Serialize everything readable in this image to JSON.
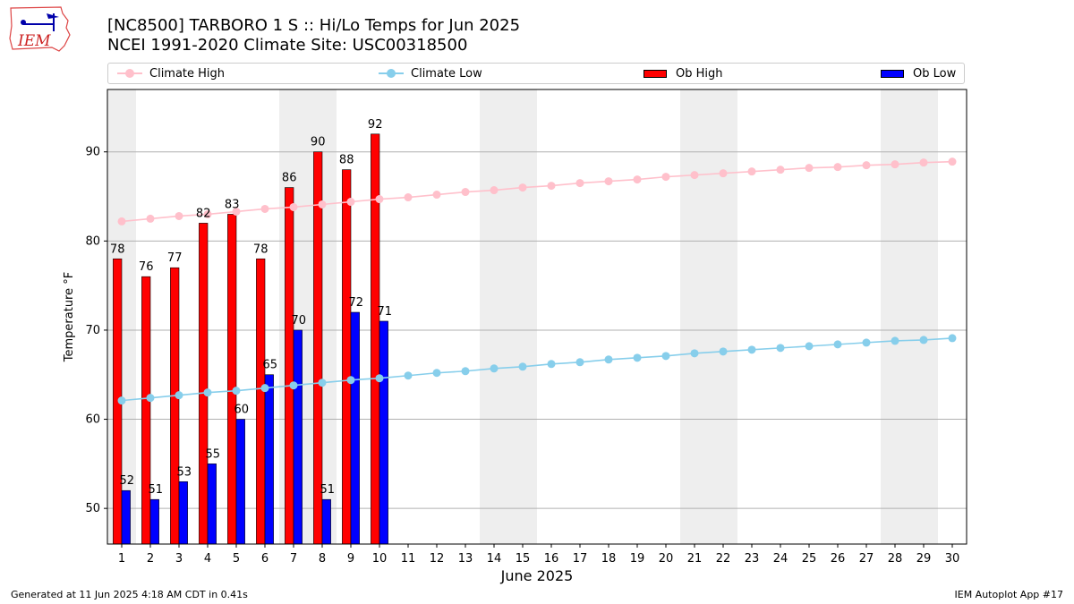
{
  "header": {
    "title_line1": "[NC8500] TARBORO 1 S :: Hi/Lo Temps for Jun 2025",
    "title_line2": "NCEI 1991-2020 Climate Site: USC00318500",
    "logo_text": "IEM"
  },
  "legend": {
    "items": [
      {
        "label": "Climate High",
        "kind": "line",
        "color": "#ffc0cb"
      },
      {
        "label": "Climate Low",
        "kind": "line",
        "color": "#87ceeb"
      },
      {
        "label": "Ob High",
        "kind": "box",
        "color": "#ff0000"
      },
      {
        "label": "Ob Low",
        "kind": "box",
        "color": "#0000ff"
      }
    ]
  },
  "footer": {
    "generated": "Generated at 11 Jun 2025 4:18 AM CDT in 0.41s",
    "app": "IEM Autoplot App #17"
  },
  "chart_data": {
    "type": "bar",
    "xlabel": "June 2025",
    "ylabel": "Temperature °F",
    "xlim": [
      0.5,
      30.5
    ],
    "ylim": [
      46,
      97
    ],
    "yticks": [
      50,
      60,
      70,
      80,
      90
    ],
    "grid": "horizontal",
    "legend_position": "top",
    "days": [
      1,
      2,
      3,
      4,
      5,
      6,
      7,
      8,
      9,
      10,
      11,
      12,
      13,
      14,
      15,
      16,
      17,
      18,
      19,
      20,
      21,
      22,
      23,
      24,
      25,
      26,
      27,
      28,
      29,
      30
    ],
    "weekend_days": [
      1,
      7,
      8,
      14,
      15,
      21,
      22,
      28,
      29
    ],
    "ob_high": [
      78,
      76,
      77,
      82,
      83,
      78,
      86,
      90,
      88,
      92
    ],
    "ob_low": [
      52,
      51,
      53,
      55,
      60,
      65,
      70,
      51,
      72,
      71
    ],
    "climate_high": [
      82.2,
      82.5,
      82.8,
      83.0,
      83.3,
      83.6,
      83.8,
      84.1,
      84.4,
      84.7,
      84.9,
      85.2,
      85.5,
      85.7,
      86.0,
      86.2,
      86.5,
      86.7,
      86.9,
      87.2,
      87.4,
      87.6,
      87.8,
      88.0,
      88.2,
      88.3,
      88.5,
      88.6,
      88.8,
      88.9
    ],
    "climate_low": [
      62.1,
      62.4,
      62.7,
      63.0,
      63.2,
      63.5,
      63.8,
      64.1,
      64.4,
      64.6,
      64.9,
      65.2,
      65.4,
      65.7,
      65.9,
      66.2,
      66.4,
      66.7,
      66.9,
      67.1,
      67.4,
      67.6,
      67.8,
      68.0,
      68.2,
      68.4,
      68.6,
      68.8,
      68.9,
      69.1
    ],
    "colors": {
      "ob_high": "#ff0000",
      "ob_low": "#0000ff",
      "climate_high": "#ffc0cb",
      "climate_low": "#87ceeb",
      "weekend": "#eeeeee",
      "grid": "#b0b0b0"
    }
  }
}
